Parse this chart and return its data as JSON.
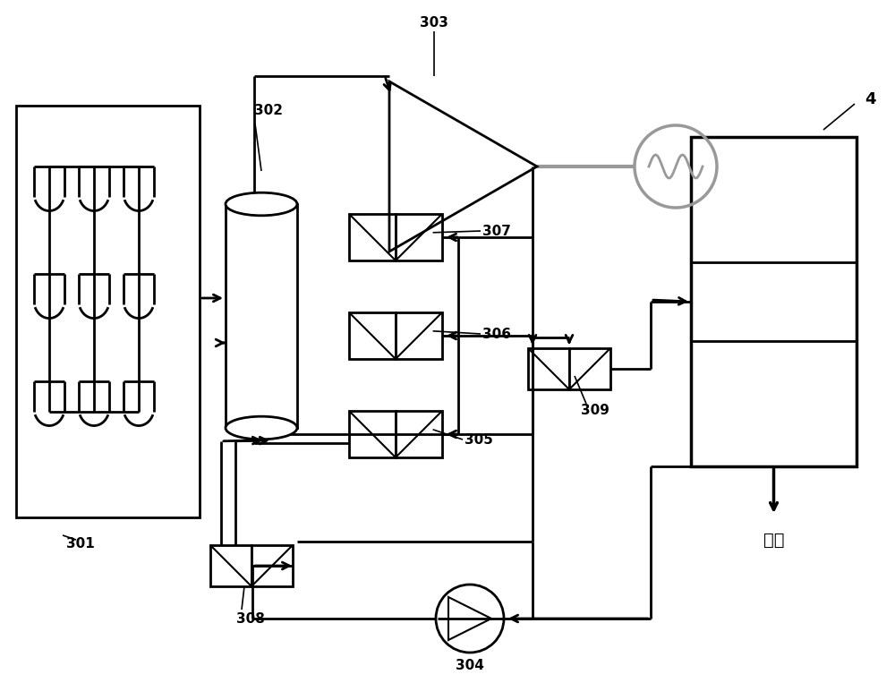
{
  "bg": "#ffffff",
  "lc": "#000000",
  "lw": 2.0,
  "gray": "#999999",
  "label_301": "301",
  "label_302": "302",
  "label_303": "303",
  "label_304": "304",
  "label_305": "305",
  "label_306": "306",
  "label_307": "307",
  "label_308": "308",
  "label_309": "309",
  "label_4": "4",
  "label_danshui": "淡水",
  "fig_w": 10.0,
  "fig_h": 7.63,
  "dpi": 100
}
